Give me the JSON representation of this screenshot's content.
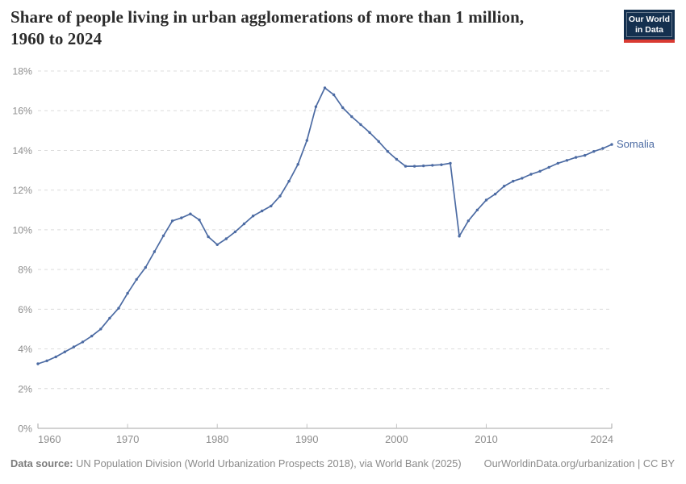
{
  "header": {
    "title_line1": "Share of people living in urban agglomerations of more than 1 million,",
    "title_line2": "1960 to 2024",
    "logo_line1": "Our World",
    "logo_line2": "in Data"
  },
  "footer": {
    "source_label": "Data source:",
    "source_text": "UN Population Division (World Urbanization Prospects 2018), via World Bank (2025)",
    "link_text": "OurWorldinData.org/urbanization | CC BY"
  },
  "colors": {
    "series_blue": "#4c6ba3",
    "grid": "#dcdcdc",
    "axis": "#a5a5a5",
    "tick_mark": "#c2c2c2",
    "tick_text": "#8e8e8e",
    "logo_navy": "#14304f",
    "logo_red": "#d93a32"
  },
  "chart_data": {
    "type": "line",
    "title": "Share of people living in urban agglomerations of more than 1 million, 1960 to 2024",
    "xlabel": "",
    "ylabel": "",
    "xlim": [
      1960,
      2024
    ],
    "ylim": [
      0,
      18
    ],
    "grid": "horizontal-dashed",
    "legend_position": "end-of-line-label",
    "x_ticks": [
      1960,
      1970,
      1980,
      1990,
      2000,
      2010,
      2024
    ],
    "x_tick_labels": [
      "1960",
      "1970",
      "1980",
      "1990",
      "2000",
      "2010",
      "2024"
    ],
    "y_ticks": [
      0,
      2,
      4,
      6,
      8,
      10,
      12,
      14,
      16,
      18
    ],
    "y_tick_labels": [
      "0%",
      "2%",
      "4%",
      "6%",
      "8%",
      "10%",
      "12%",
      "14%",
      "16%",
      "18%"
    ],
    "series": [
      {
        "name": "Somalia",
        "color": "#4c6ba3",
        "x": [
          1960,
          1961,
          1962,
          1963,
          1964,
          1965,
          1966,
          1967,
          1968,
          1969,
          1970,
          1971,
          1972,
          1973,
          1974,
          1975,
          1976,
          1977,
          1978,
          1979,
          1980,
          1981,
          1982,
          1983,
          1984,
          1985,
          1986,
          1987,
          1988,
          1989,
          1990,
          1991,
          1992,
          1993,
          1994,
          1995,
          1996,
          1997,
          1998,
          1999,
          2000,
          2001,
          2002,
          2003,
          2004,
          2005,
          2006,
          2007,
          2008,
          2009,
          2010,
          2011,
          2012,
          2013,
          2014,
          2015,
          2016,
          2017,
          2018,
          2019,
          2020,
          2021,
          2022,
          2023,
          2024
        ],
        "values": [
          3.25,
          3.4,
          3.6,
          3.85,
          4.1,
          4.35,
          4.65,
          5.0,
          5.55,
          6.05,
          6.8,
          7.5,
          8.1,
          8.9,
          9.7,
          10.45,
          10.6,
          10.8,
          10.5,
          9.65,
          9.25,
          9.55,
          9.9,
          10.3,
          10.7,
          10.95,
          11.2,
          11.7,
          12.45,
          13.3,
          14.5,
          16.2,
          17.15,
          16.8,
          16.15,
          15.7,
          15.3,
          14.9,
          14.45,
          13.95,
          13.55,
          13.2,
          13.2,
          13.22,
          13.25,
          13.28,
          13.35,
          9.68,
          10.45,
          11.0,
          11.5,
          11.8,
          12.2,
          12.45,
          12.6,
          12.8,
          12.95,
          13.15,
          13.35,
          13.5,
          13.65,
          13.75,
          13.95,
          14.1,
          14.3
        ]
      }
    ]
  }
}
